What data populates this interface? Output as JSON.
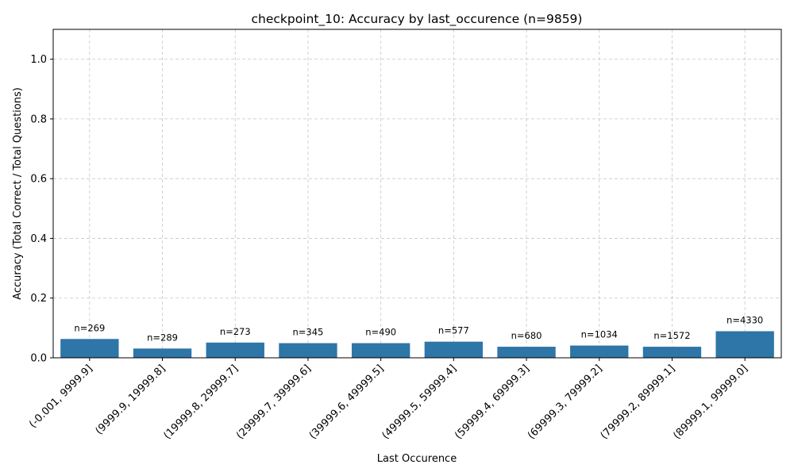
{
  "chart_data": {
    "type": "bar",
    "title": "checkpoint_10: Accuracy by last_occurence (n=9859)",
    "xlabel": "Last Occurence",
    "ylabel": "Accuracy (Total Correct / Total Questions)",
    "ylim": [
      0,
      1.1
    ],
    "yticks": [
      0.0,
      0.2,
      0.4,
      0.6,
      0.8,
      1.0
    ],
    "ytick_labels": [
      "0.0",
      "0.2",
      "0.4",
      "0.6",
      "0.8",
      "1.0"
    ],
    "grid": true,
    "color": "#2e75a8",
    "categories": [
      "(-0.001, 9999.9]",
      "(9999.9, 19999.8]",
      "(19999.8, 29999.7]",
      "(29999.7, 39999.6]",
      "(39999.6, 49999.5]",
      "(49999.5, 59999.4]",
      "(59999.4, 69999.3]",
      "(69999.3, 79999.2]",
      "(79999.2, 89999.1]",
      "(89999.1, 99999.0]"
    ],
    "values": [
      0.063,
      0.031,
      0.051,
      0.049,
      0.049,
      0.054,
      0.037,
      0.041,
      0.037,
      0.089
    ],
    "annotations": [
      "n=269",
      "n=289",
      "n=273",
      "n=345",
      "n=490",
      "n=577",
      "n=680",
      "n=1034",
      "n=1572",
      "n=4330"
    ]
  }
}
